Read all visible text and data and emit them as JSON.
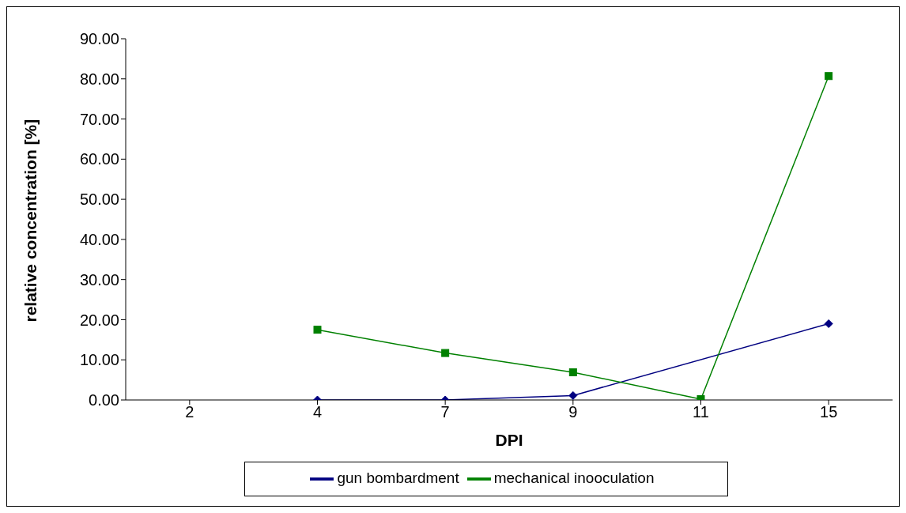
{
  "chart_data": {
    "type": "line",
    "xlabel": "DPI",
    "ylabel": "relative concentration [%]",
    "categories": [
      "2",
      "4",
      "7",
      "9",
      "11",
      "15"
    ],
    "series": [
      {
        "name": "gun bombardment",
        "color": "#000080",
        "marker": "diamond",
        "values": [
          null,
          0,
          0,
          1.1,
          null,
          19.0
        ]
      },
      {
        "name": "mechanical inooculation",
        "color": "#008000",
        "marker": "square",
        "values": [
          null,
          17.5,
          11.7,
          6.9,
          0.2,
          80.7
        ]
      }
    ],
    "ylim": [
      0,
      90
    ],
    "yticks": [
      {
        "value": 0,
        "label": "0.00"
      },
      {
        "value": 10,
        "label": "10.00"
      },
      {
        "value": 20,
        "label": "20.00"
      },
      {
        "value": 30,
        "label": "30.00"
      },
      {
        "value": 40,
        "label": "40.00"
      },
      {
        "value": 50,
        "label": "50.00"
      },
      {
        "value": 60,
        "label": "60.00"
      },
      {
        "value": 70,
        "label": "70.00"
      },
      {
        "value": 80,
        "label": "80.00"
      },
      {
        "value": 90,
        "label": "90.00"
      }
    ],
    "grid": false,
    "legend": "bottom",
    "line_style": "solid"
  }
}
